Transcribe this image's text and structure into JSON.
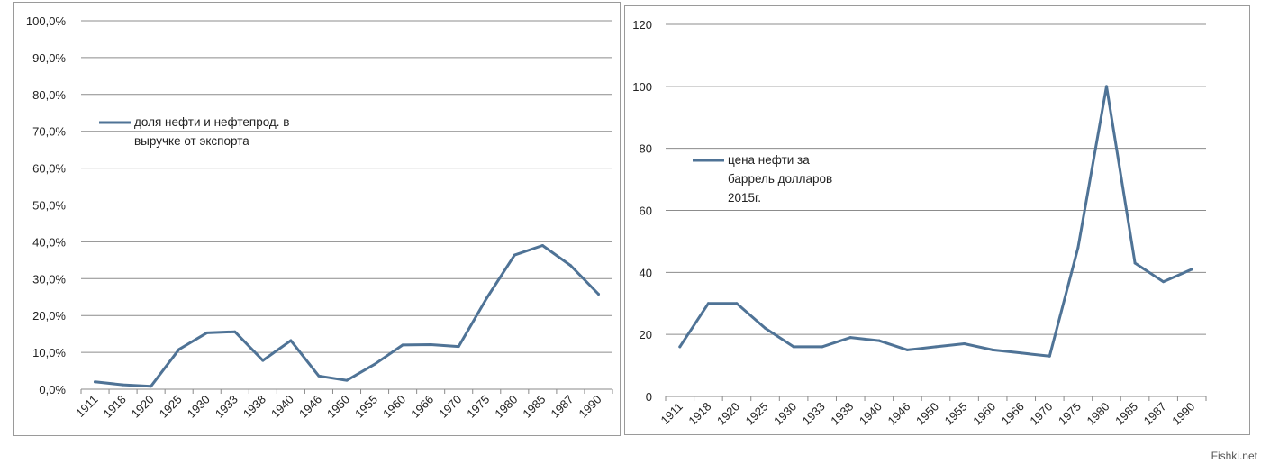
{
  "chart_data": [
    {
      "type": "line",
      "categories": [
        "1911",
        "1918",
        "1920",
        "1925",
        "1930",
        "1933",
        "1938",
        "1940",
        "1946",
        "1950",
        "1955",
        "1960",
        "1966",
        "1970",
        "1975",
        "1980",
        "1985",
        "1987",
        "1990"
      ],
      "series": [
        {
          "name": "доля нефти и  нефтепрод. в выручке от экспорта",
          "name_lines": [
            "доля нефти и  нефтепрод. в",
            "выручке от экспорта"
          ],
          "values": [
            2.0,
            1.2,
            0.8,
            10.8,
            15.3,
            15.6,
            7.8,
            13.2,
            3.6,
            2.4,
            6.8,
            12.0,
            12.1,
            11.6,
            24.7,
            36.4,
            39.0,
            33.6,
            25.8
          ],
          "color": "#4f7396"
        }
      ],
      "ylim": [
        0,
        100
      ],
      "yticks": [
        0,
        10,
        20,
        30,
        40,
        50,
        60,
        70,
        80,
        90,
        100
      ],
      "ytick_labels": [
        "0,0%",
        "10,0%",
        "20,0%",
        "30,0%",
        "40,0%",
        "50,0%",
        "60,0%",
        "70,0%",
        "80,0%",
        "90,0%",
        "100,0%"
      ],
      "grid": true,
      "legend_placement": "upper-left"
    },
    {
      "type": "line",
      "categories": [
        "1911",
        "1918",
        "1920",
        "1925",
        "1930",
        "1933",
        "1938",
        "1940",
        "1946",
        "1950",
        "1955",
        "1960",
        "1966",
        "1970",
        "1975",
        "1980",
        "1985",
        "1987",
        "1990"
      ],
      "series": [
        {
          "name": "цена нефти за баррель долларов 2015г.",
          "name_lines": [
            "цена нефти за",
            "баррель долларов",
            "2015г."
          ],
          "values": [
            16,
            30,
            30,
            22,
            16,
            16,
            19,
            18,
            15,
            16,
            17,
            15,
            14,
            13,
            48,
            100,
            43,
            37,
            41
          ],
          "color": "#4f7396"
        }
      ],
      "ylim": [
        0,
        120
      ],
      "yticks": [
        0,
        20,
        40,
        60,
        80,
        100,
        120
      ],
      "ytick_labels": [
        "0",
        "20",
        "40",
        "60",
        "80",
        "100",
        "120"
      ],
      "grid": true,
      "legend_placement": "upper-left"
    }
  ],
  "watermark": "Fishki.net"
}
